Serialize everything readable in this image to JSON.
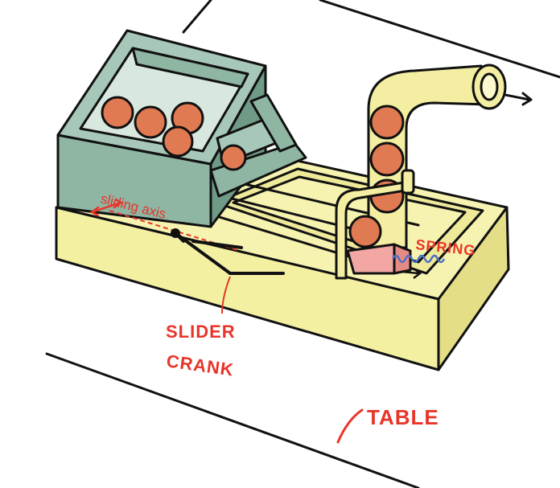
{
  "labels": {
    "sliding_axis": "sliding axis",
    "slider": "SLIDER",
    "crank": "CRANK",
    "spring": "SPRING",
    "table": "TABLE"
  },
  "colors": {
    "hopper_green": "#8fb5a3",
    "hopper_green_dark": "#6f9a86",
    "base_yellow": "#f6f3b0",
    "base_yellow_dark": "#e4de86",
    "ball": "#e07a52",
    "tube": "#f3eea2",
    "slider_pink": "#f2a7a4",
    "spring_blue": "#4a6fc7",
    "annotation_red": "#e8352a",
    "ink": "#111111"
  },
  "icons": [
    "arrow-right-icon",
    "double-arrow-icon"
  ]
}
